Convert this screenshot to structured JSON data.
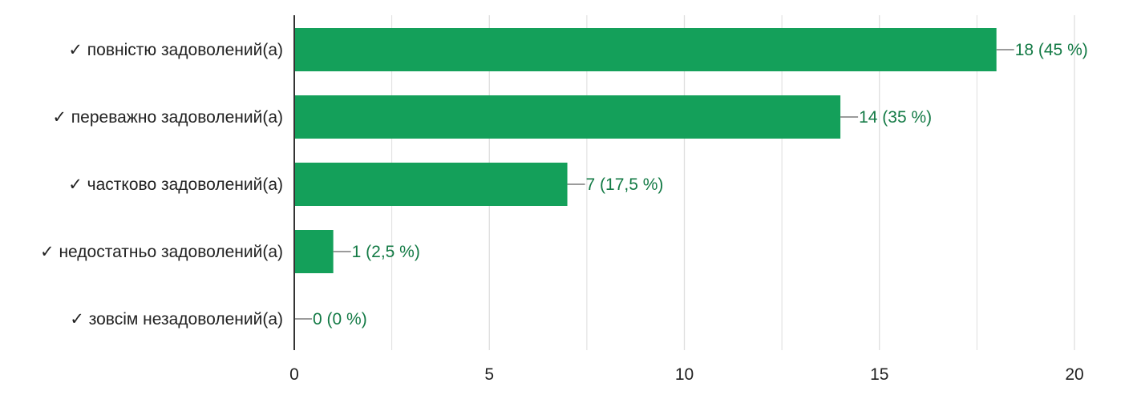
{
  "chart_data": {
    "type": "bar",
    "orientation": "horizontal",
    "categories": [
      "✓ повністю задоволений(а)",
      "✓ переважно задоволений(а)",
      "✓ частково задоволений(а)",
      "✓ недостатньо задоволений(а)",
      "✓ зовсім незадоволений(а)"
    ],
    "values": [
      18,
      14,
      7,
      1,
      0
    ],
    "data_labels": [
      "18 (45 %)",
      "14 (35 %)",
      "7 (17,5 %)",
      "1 (2,5 %)",
      "0 (0 %)"
    ],
    "x_ticks": [
      "0",
      "5",
      "10",
      "15",
      "20"
    ],
    "xlim": [
      0,
      20
    ],
    "grid": true,
    "legend": false,
    "title": "",
    "xlabel": "",
    "ylabel": ""
  },
  "colors": {
    "bar": "#14a05a",
    "label": "#137a45",
    "grid": "#dedede",
    "axis": "#333333",
    "leader": "#7a7a7a"
  }
}
